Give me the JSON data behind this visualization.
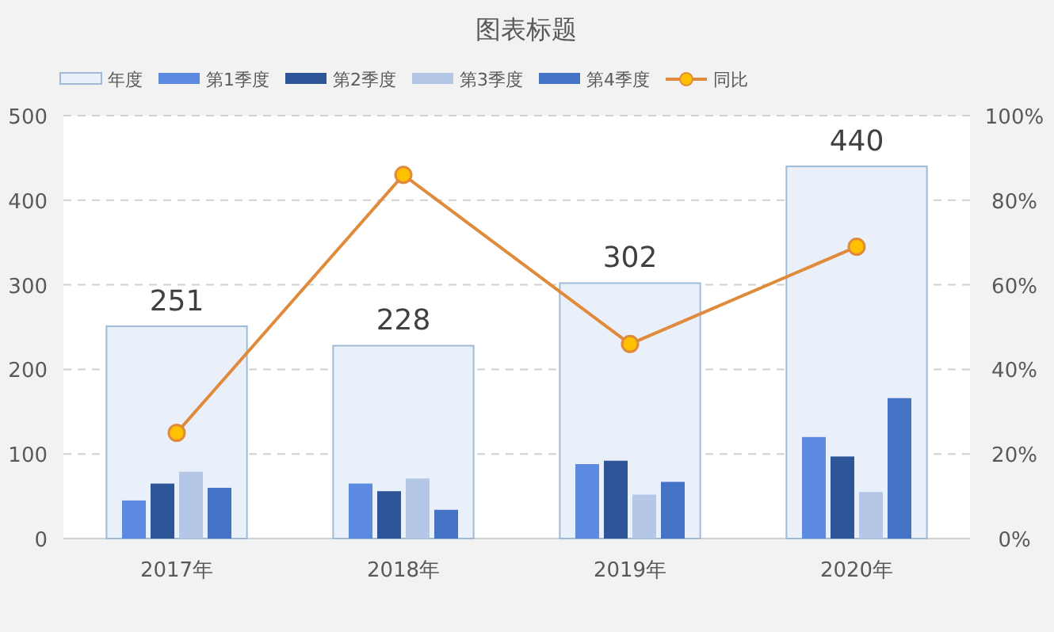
{
  "chart_data": {
    "type": "bar",
    "title": "图表标题",
    "categories": [
      "2017年",
      "2018年",
      "2019年",
      "2020年"
    ],
    "series": [
      {
        "name": "年度",
        "color": "#e9f0f9",
        "values": [
          251,
          228,
          302,
          440
        ],
        "value_labels": [
          "251",
          "228",
          "302",
          "440"
        ]
      },
      {
        "name": "第1季度",
        "color": "#5b8ae0",
        "values": [
          45,
          65,
          88,
          120
        ]
      },
      {
        "name": "第2季度",
        "color": "#2e5597",
        "values": [
          65,
          56,
          92,
          97
        ]
      },
      {
        "name": "第3季度",
        "color": "#b4c7e7",
        "values": [
          79,
          71,
          52,
          55
        ]
      },
      {
        "name": "第4季度",
        "color": "#4472c4",
        "values": [
          60,
          34,
          67,
          166
        ]
      },
      {
        "name": "同比",
        "type": "line",
        "axis": "y2",
        "color": "#e08a3c",
        "marker": "circle",
        "values": [
          25,
          86,
          46,
          69
        ]
      }
    ],
    "ylim": [
      0,
      500
    ],
    "yticks": [
      0,
      100,
      200,
      300,
      400,
      500
    ],
    "y2lim": [
      0,
      100
    ],
    "y2ticks": [
      {
        "value": 0,
        "label": "0%"
      },
      {
        "value": 20,
        "label": "20%"
      },
      {
        "value": 40,
        "label": "40%"
      },
      {
        "value": 60,
        "label": "60%"
      },
      {
        "value": 80,
        "label": "80%"
      },
      {
        "value": 100,
        "label": "100%"
      }
    ],
    "grid": "y",
    "legend": "top"
  }
}
